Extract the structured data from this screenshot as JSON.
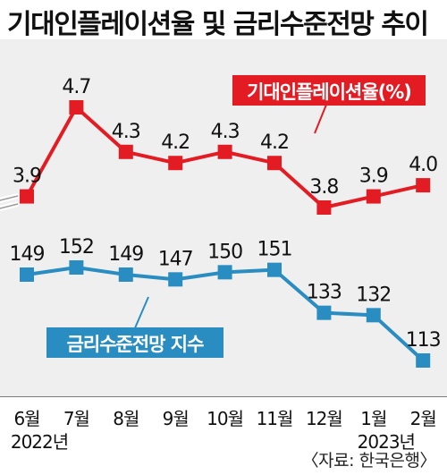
{
  "title": "기대인플레이션율 및 금리수준전망 추이",
  "source": "〈자료: 한국은행〉",
  "colors": {
    "inflation": "#e31b23",
    "rate_outlook": "#2a8dc1",
    "background": "#efefef"
  },
  "chart_data": {
    "type": "line",
    "x": [
      "6월",
      "7월",
      "8월",
      "9월",
      "10월",
      "11월",
      "12월",
      "1월",
      "2월"
    ],
    "year_labels": [
      {
        "at": "6월",
        "text": "2022년"
      },
      {
        "at": "1월",
        "text": "2023년"
      }
    ],
    "series": [
      {
        "name": "기대인플레이션율(%)",
        "values": [
          3.9,
          4.7,
          4.3,
          4.2,
          4.3,
          4.2,
          3.8,
          3.9,
          4.0
        ]
      },
      {
        "name": "금리수준전망 지수",
        "values": [
          149,
          152,
          149,
          147,
          150,
          151,
          133,
          132,
          113
        ]
      }
    ],
    "grid": false,
    "axis_break": true
  }
}
